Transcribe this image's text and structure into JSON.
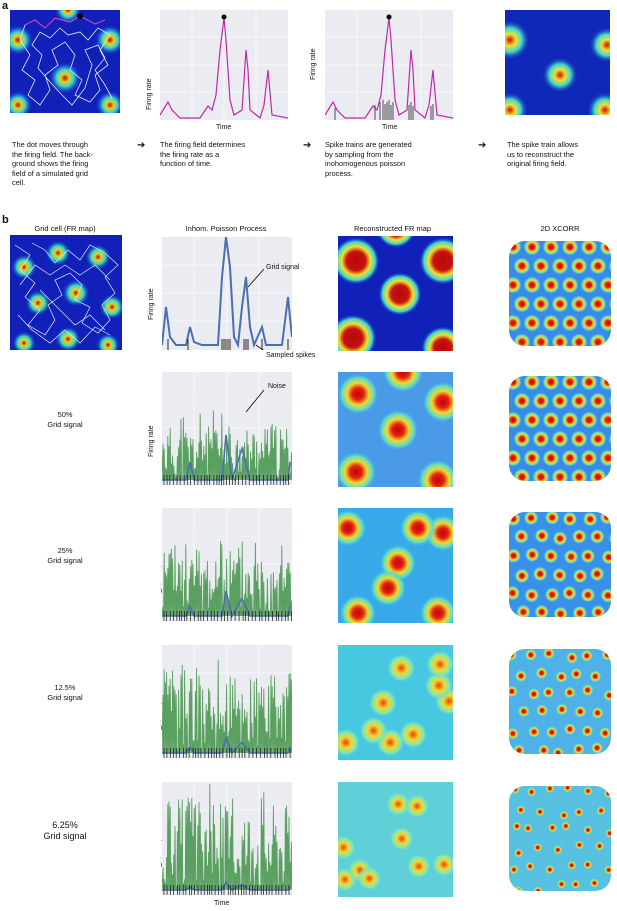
{
  "panel_a": {
    "letter": "a",
    "captions": [
      "The dot moves through\nthe firing field. The back-\nground shows the firing\nfield of a simulated grid\ncell.",
      "The firing field determines\nthe firing rate as a\nfunction of time.",
      "Spike trains are generated\nby sampling from the\ninohomogenous poisson\nprocess.",
      "The spike train allows\nus to reconstruct the\noriginal firing field."
    ],
    "ylabel": "Firing rate",
    "xlabel": "Time",
    "colors": {
      "trace": "#c02aa8",
      "spikes": "#222222"
    }
  },
  "panel_b": {
    "letter": "b",
    "column_titles": [
      "Grid cell (FR map)",
      "Inhom. Poisson Process",
      "Reconstructed FR map",
      "2D XCORR"
    ],
    "ylabel": "Firing rate",
    "xlabel": "Time",
    "annotations": {
      "grid_signal": "Grid signal",
      "sampled_spikes": "Sampled spikes",
      "noise": "Noise"
    },
    "rows": [
      {
        "label": ""
      },
      {
        "label": "50%\nGrid signal"
      },
      {
        "label": "25%\nGrid signal"
      },
      {
        "label": "12.5%\nGrid signal"
      },
      {
        "label": "6.25%\nGrid signal"
      }
    ],
    "colors": {
      "grid_trace": "#4a6fb0",
      "noise_trace": "#5aa060",
      "spikes": "#111111"
    }
  },
  "colormap": {
    "low": "#1a2fc8",
    "mid": "#4de0d0",
    "high": "#c81010"
  }
}
